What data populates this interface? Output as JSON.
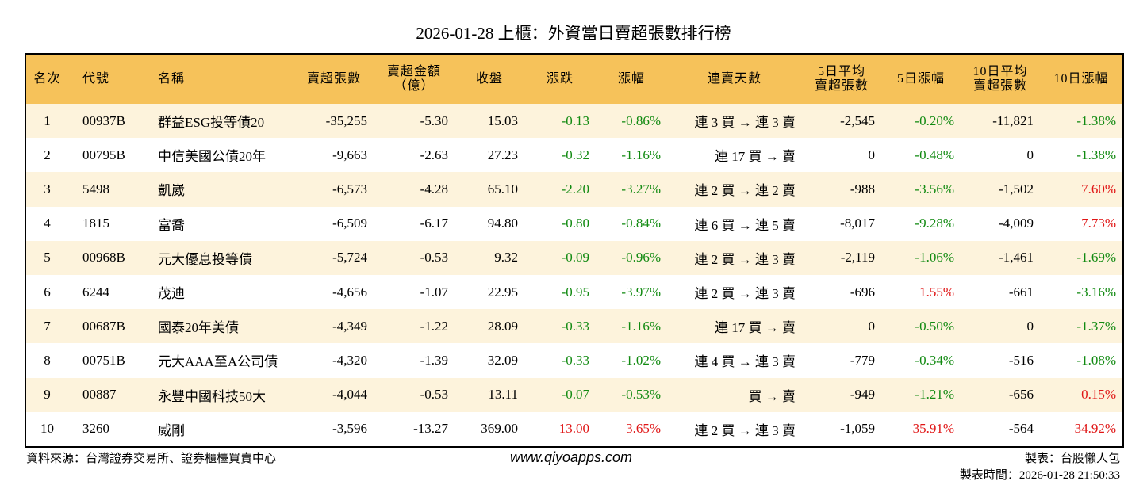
{
  "title": "2026-01-28 上櫃：外資當日賣超張數排行榜",
  "table": {
    "header": [
      "名次",
      "代號",
      "名稱",
      "賣超張數",
      "賣超金額\n（億）",
      "收盤",
      "漲跌",
      "漲幅",
      "連賣天數",
      "5日平均\n賣超張數",
      "5日漲幅",
      "10日平均\n賣超張數",
      "10日漲幅"
    ],
    "rows": [
      [
        "1",
        "00937B",
        "群益ESG投等債20",
        "-35,255",
        "-5.30",
        "15.03",
        "-0.13",
        "-0.86%",
        "連 3 買 → 連 3 賣",
        "-2,545",
        "-0.20%",
        "-11,821",
        "-1.38%"
      ],
      [
        "2",
        "00795B",
        "中信美國公債20年",
        "-9,663",
        "-2.63",
        "27.23",
        "-0.32",
        "-1.16%",
        "連 17 買 → 賣",
        "0",
        "-0.48%",
        "0",
        "-1.38%"
      ],
      [
        "3",
        "5498",
        "凱崴",
        "-6,573",
        "-4.28",
        "65.10",
        "-2.20",
        "-3.27%",
        "連 2 買 → 連 2 賣",
        "-988",
        "-3.56%",
        "-1,502",
        "7.60%"
      ],
      [
        "4",
        "1815",
        "富喬",
        "-6,509",
        "-6.17",
        "94.80",
        "-0.80",
        "-0.84%",
        "連 6 買 → 連 5 賣",
        "-8,017",
        "-9.28%",
        "-4,009",
        "7.73%"
      ],
      [
        "5",
        "00968B",
        "元大優息投等債",
        "-5,724",
        "-0.53",
        "9.32",
        "-0.09",
        "-0.96%",
        "連 2 買 → 連 3 賣",
        "-2,119",
        "-1.06%",
        "-1,461",
        "-1.69%"
      ],
      [
        "6",
        "6244",
        "茂迪",
        "-4,656",
        "-1.07",
        "22.95",
        "-0.95",
        "-3.97%",
        "連 2 買 → 連 3 賣",
        "-696",
        "1.55%",
        "-661",
        "-3.16%"
      ],
      [
        "7",
        "00687B",
        "國泰20年美債",
        "-4,349",
        "-1.22",
        "28.09",
        "-0.33",
        "-1.16%",
        "連 17 買 → 賣",
        "0",
        "-0.50%",
        "0",
        "-1.37%"
      ],
      [
        "8",
        "00751B",
        "元大AAA至A公司債",
        "-4,320",
        "-1.39",
        "32.09",
        "-0.33",
        "-1.02%",
        "連 4 買 → 連 3 賣",
        "-779",
        "-0.34%",
        "-516",
        "-1.08%"
      ],
      [
        "9",
        "00887",
        "永豐中國科技50大",
        "-4,044",
        "-0.53",
        "13.11",
        "-0.07",
        "-0.53%",
        "買 → 賣",
        "-949",
        "-1.21%",
        "-656",
        "0.15%"
      ],
      [
        "10",
        "3260",
        "威剛",
        "-3,596",
        "-13.27",
        "369.00",
        "13.00",
        "3.65%",
        "連 2 買 → 連 3 賣",
        "-1,059",
        "35.91%",
        "-564",
        "34.92%"
      ]
    ]
  },
  "footer": {
    "source": "資料來源：台灣證券交易所、證券櫃檯買賣中心",
    "url": "www.qiyoapps.com",
    "author": "製表：台股懶人包",
    "time": "製表時間：2026-01-28 21:50:33"
  }
}
